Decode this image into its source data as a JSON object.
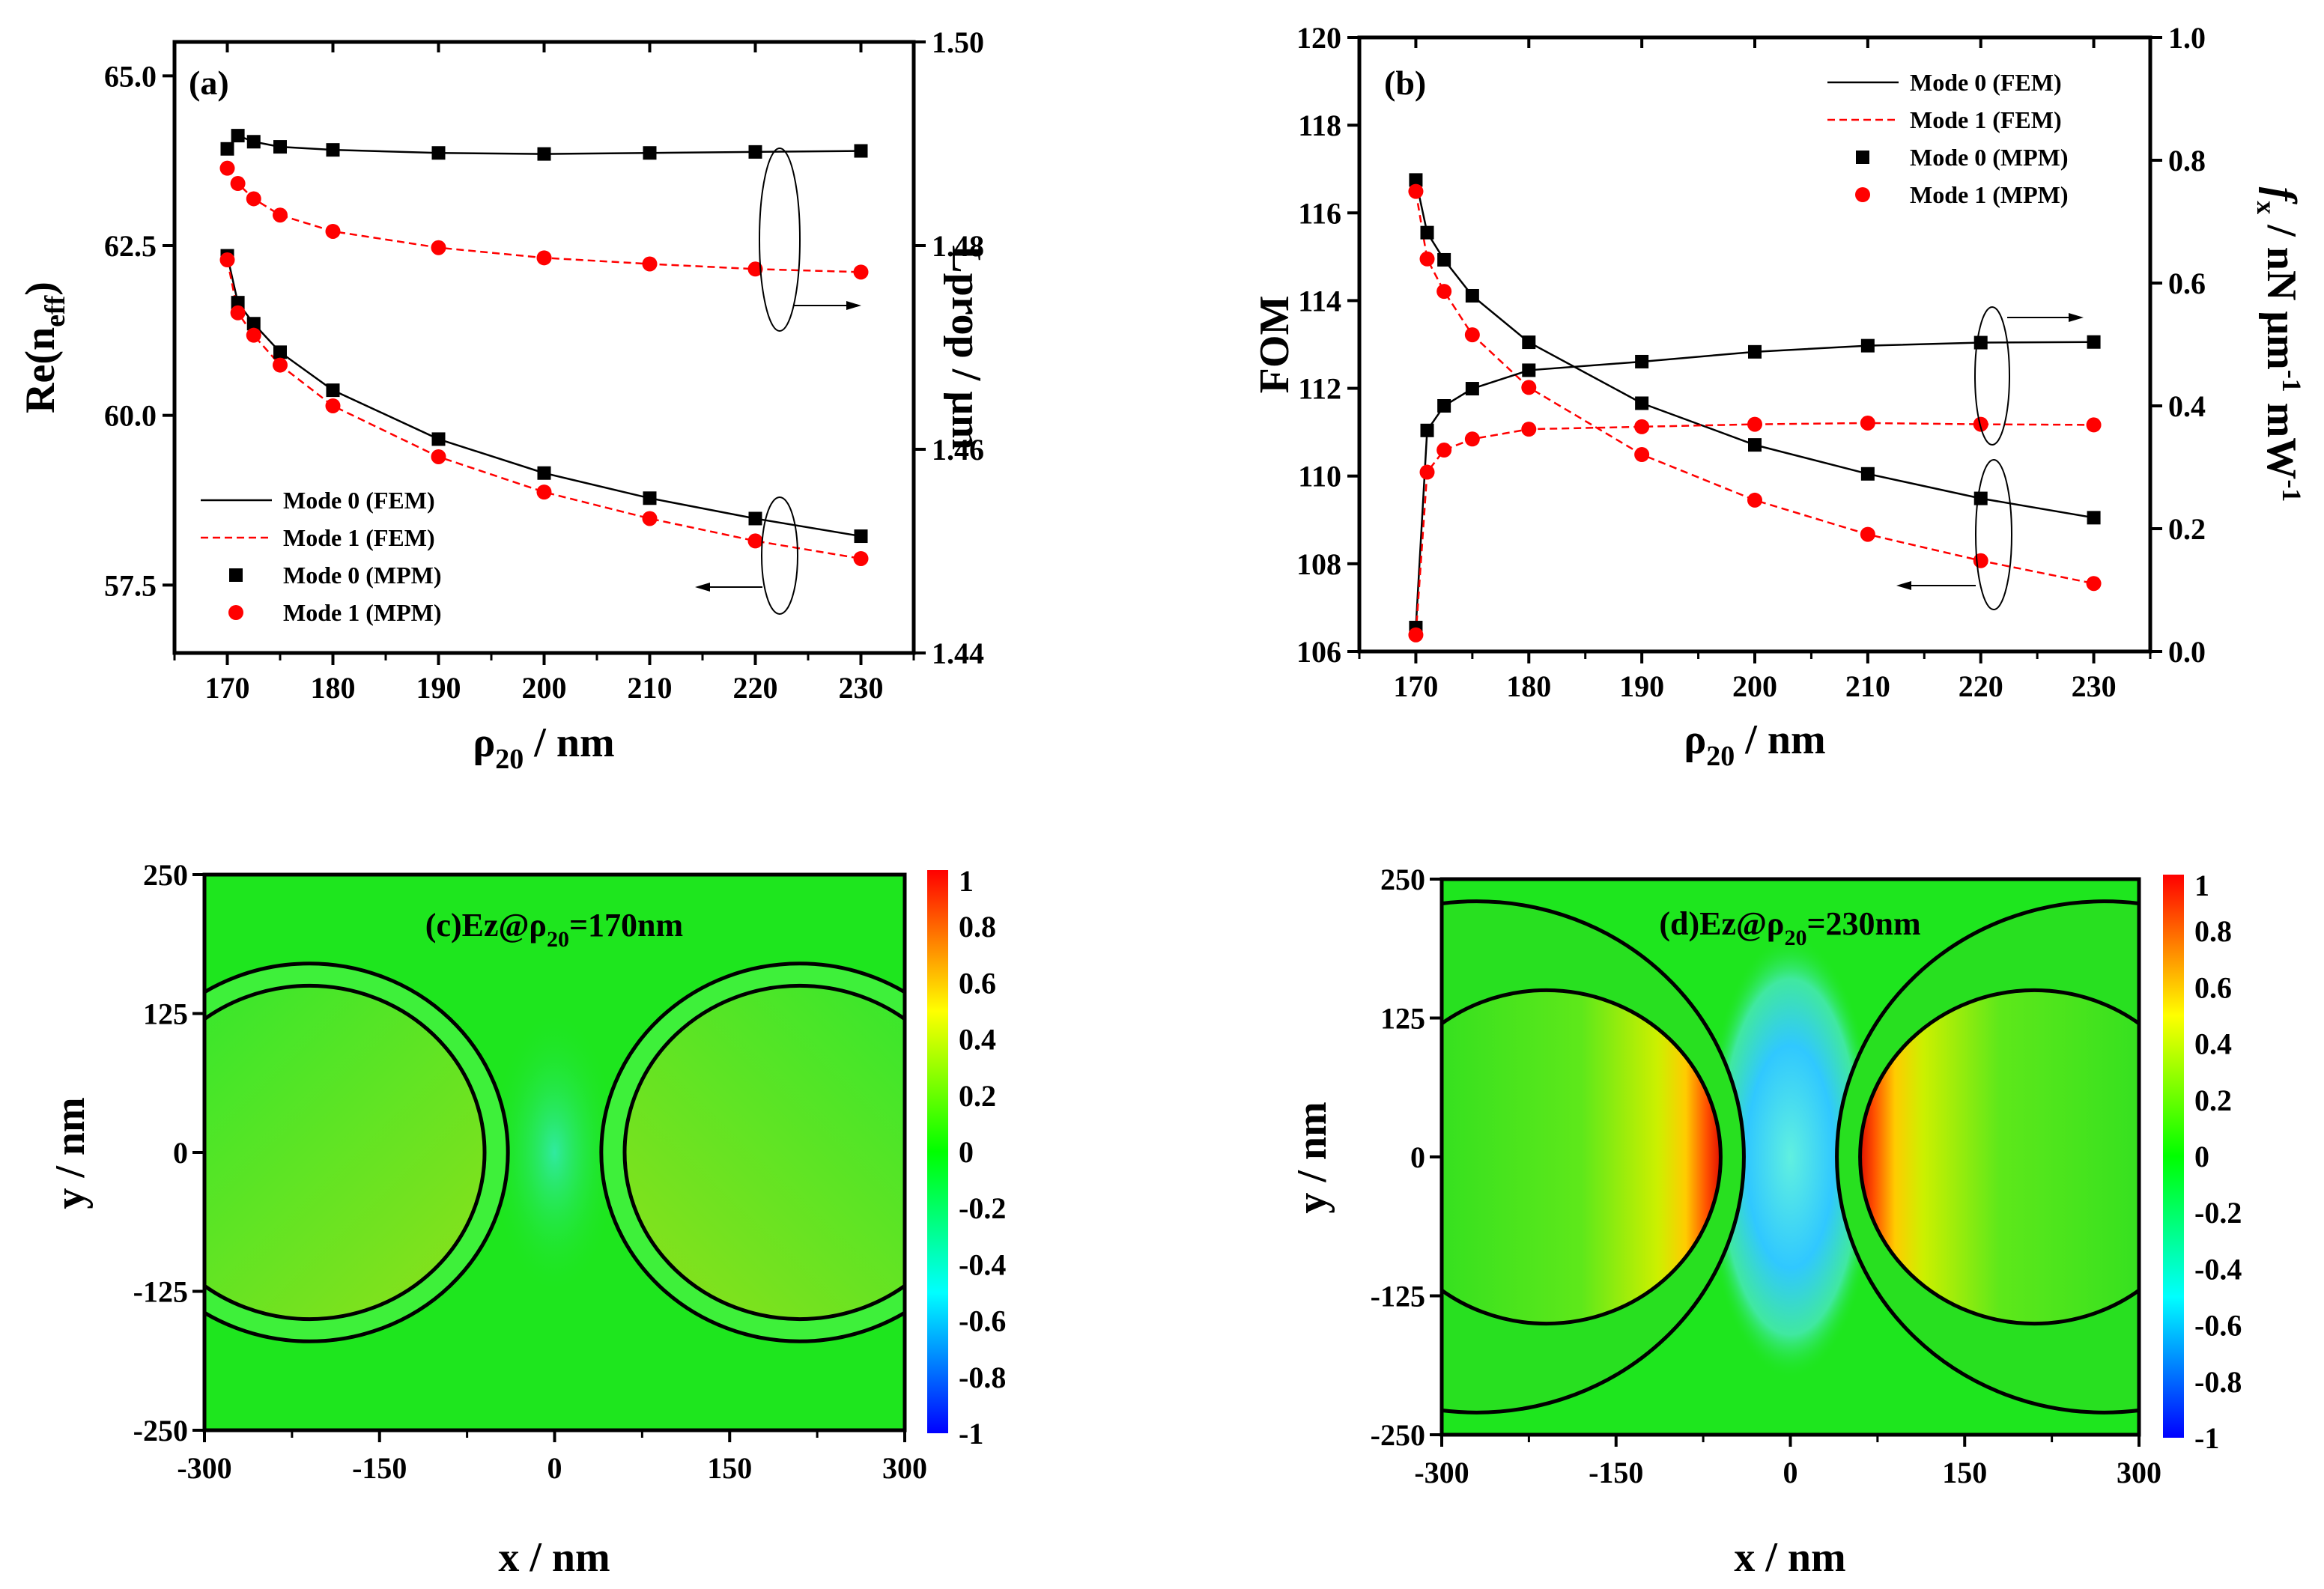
{
  "chart_data": [
    {
      "id": "a",
      "type": "line",
      "panel_label": "(a)",
      "xlabel": {
        "main": "ρ",
        "sub": "20",
        "rest": " / nm"
      },
      "ylabel_left": {
        "main": "Re(n",
        "sub": "eff",
        "rest": ")"
      },
      "ylabel_right": "Lprop / μm",
      "xlim": [
        165,
        235
      ],
      "ylim_left": [
        56.5,
        65.5
      ],
      "ylim_right": [
        1.44,
        1.5
      ],
      "xticks": [
        170,
        180,
        190,
        200,
        210,
        220,
        230
      ],
      "xtick_labels": [
        "170",
        "180",
        "190",
        "200",
        "210",
        "220",
        "230"
      ],
      "yticks_left": [
        57.5,
        60.0,
        62.5,
        65.0
      ],
      "ytick_labels_left": [
        "57.5",
        "60.0",
        "62.5",
        "65.0"
      ],
      "yticks_right": [
        1.44,
        1.46,
        1.48,
        1.5
      ],
      "ytick_labels_right": [
        "1.44",
        "1.46",
        "1.48",
        "1.50"
      ],
      "x": [
        170,
        171,
        172.5,
        175,
        180,
        190,
        200,
        210,
        220,
        230
      ],
      "series": [
        {
          "name": "Mode 0 (FEM)",
          "axis": "left",
          "style": "solid",
          "color": "#000000",
          "values": [
            62.35,
            61.66,
            61.35,
            60.93,
            60.37,
            59.65,
            59.15,
            58.78,
            58.48,
            58.22
          ]
        },
        {
          "name": "Mode 1 (FEM)",
          "axis": "left",
          "style": "dashed",
          "color": "#ff0000",
          "values": [
            62.29,
            61.51,
            61.18,
            60.74,
            60.14,
            59.39,
            58.87,
            58.48,
            58.15,
            57.89
          ]
        },
        {
          "name": "Mode 0 (MPM)",
          "axis": "left",
          "style": "square",
          "color": "#000000",
          "values": [
            62.35,
            61.66,
            61.35,
            60.93,
            60.37,
            59.65,
            59.15,
            58.78,
            58.48,
            58.22
          ]
        },
        {
          "name": "Mode 1 (MPM)",
          "axis": "left",
          "style": "circle",
          "color": "#ff0000",
          "values": [
            62.29,
            61.51,
            61.18,
            60.74,
            60.14,
            59.39,
            58.87,
            58.48,
            58.15,
            57.89
          ]
        },
        {
          "name": "Mode 0 Lprop (FEM)",
          "axis": "right",
          "style": "solid",
          "color": "#000000",
          "values": [
            1.4895,
            1.4908,
            1.4902,
            1.4897,
            1.4894,
            1.4891,
            1.489,
            1.4891,
            1.4892,
            1.4893
          ]
        },
        {
          "name": "Mode 1 Lprop (FEM)",
          "axis": "right",
          "style": "dashed",
          "color": "#ff0000",
          "values": [
            1.4876,
            1.4861,
            1.4846,
            1.483,
            1.4814,
            1.4798,
            1.4788,
            1.4782,
            1.4777,
            1.4774
          ]
        },
        {
          "name": "Mode 0 Lprop (MPM)",
          "axis": "right",
          "style": "square",
          "color": "#000000",
          "values": [
            1.4895,
            1.4908,
            1.4902,
            1.4897,
            1.4894,
            1.4891,
            1.489,
            1.4891,
            1.4892,
            1.4893
          ]
        },
        {
          "name": "Mode 1 Lprop (MPM)",
          "axis": "right",
          "style": "circle",
          "color": "#ff0000",
          "values": [
            1.4876,
            1.4861,
            1.4846,
            1.483,
            1.4814,
            1.4798,
            1.4788,
            1.4782,
            1.4777,
            1.4774
          ]
        }
      ],
      "legend": {
        "placement": "bottom-left",
        "entries": [
          "Mode 0 (FEM)",
          "Mode 1 (FEM)",
          "Mode 0 (MPM)",
          "Mode 1 (MPM)"
        ]
      }
    },
    {
      "id": "b",
      "type": "line",
      "panel_label": "(b)",
      "xlabel": {
        "main": "ρ",
        "sub": "20",
        "rest": " / nm"
      },
      "ylabel_left": "FOM",
      "ylabel_right": {
        "f": "f",
        "fsub": "x",
        "mid": " / nN μm",
        "sup1": "-1",
        "mid2": " mW",
        "sup2": "-1"
      },
      "xlim": [
        165,
        235
      ],
      "ylim_left": [
        106,
        120
      ],
      "ylim_right": [
        0.0,
        1.0
      ],
      "xticks": [
        170,
        180,
        190,
        200,
        210,
        220,
        230
      ],
      "xtick_labels": [
        "170",
        "180",
        "190",
        "200",
        "210",
        "220",
        "230"
      ],
      "yticks_left": [
        106,
        108,
        110,
        112,
        114,
        116,
        118,
        120
      ],
      "ytick_labels_left": [
        "106",
        "108",
        "110",
        "112",
        "114",
        "116",
        "118",
        "120"
      ],
      "yticks_right": [
        0.0,
        0.2,
        0.4,
        0.6,
        0.8,
        1.0
      ],
      "ytick_labels_right": [
        "0.0",
        "0.2",
        "0.4",
        "0.6",
        "0.8",
        "1.0"
      ],
      "x": [
        170,
        171,
        172.5,
        175,
        180,
        190,
        200,
        210,
        220,
        230
      ],
      "series": [
        {
          "name": "Mode 0 (FEM)",
          "axis": "left",
          "style": "solid",
          "color": "#000000",
          "values": [
            116.75,
            115.55,
            114.93,
            114.11,
            113.05,
            111.66,
            110.71,
            110.05,
            109.49,
            109.05
          ]
        },
        {
          "name": "Mode 1 (FEM)",
          "axis": "left",
          "style": "dashed",
          "color": "#ff0000",
          "values": [
            116.49,
            114.95,
            114.21,
            113.22,
            112.02,
            110.49,
            109.45,
            108.67,
            108.07,
            107.55
          ]
        },
        {
          "name": "Mode 0 (MPM)",
          "axis": "left",
          "style": "square",
          "color": "#000000",
          "values": [
            116.75,
            115.55,
            114.93,
            114.11,
            113.05,
            111.66,
            110.71,
            110.05,
            109.49,
            109.05
          ]
        },
        {
          "name": "Mode 1 (MPM)",
          "axis": "left",
          "style": "circle",
          "color": "#ff0000",
          "values": [
            116.49,
            114.95,
            114.21,
            113.22,
            112.02,
            110.49,
            109.45,
            108.67,
            108.07,
            107.55
          ]
        },
        {
          "name": "Mode 0 fx (FEM)",
          "axis": "right",
          "style": "solid",
          "color": "#000000",
          "values": [
            0.039,
            0.36,
            0.4,
            0.428,
            0.458,
            0.472,
            0.488,
            0.498,
            0.503,
            0.504
          ]
        },
        {
          "name": "Mode 1 fx (FEM)",
          "axis": "right",
          "style": "dashed",
          "color": "#ff0000",
          "values": [
            0.027,
            0.292,
            0.328,
            0.346,
            0.362,
            0.366,
            0.37,
            0.372,
            0.37,
            0.369
          ]
        },
        {
          "name": "Mode 0 fx (MPM)",
          "axis": "right",
          "style": "square",
          "color": "#000000",
          "values": [
            0.039,
            0.36,
            0.4,
            0.428,
            0.458,
            0.472,
            0.488,
            0.498,
            0.503,
            0.504
          ]
        },
        {
          "name": "Mode 1 fx (MPM)",
          "axis": "right",
          "style": "circle",
          "color": "#ff0000",
          "values": [
            0.027,
            0.292,
            0.328,
            0.346,
            0.362,
            0.366,
            0.37,
            0.372,
            0.37,
            0.369
          ]
        }
      ],
      "legend": {
        "placement": "top-right",
        "entries": [
          "Mode 0 (FEM)",
          "Mode 1 (FEM)",
          "Mode 0 (MPM)",
          "Mode 1 (MPM)"
        ]
      }
    },
    {
      "id": "c",
      "type": "heatmap",
      "title": {
        "main": "(c)Ez@ρ",
        "sub": "20",
        "rest": "=170nm"
      },
      "xlabel": "x / nm",
      "ylabel": "y / nm",
      "xlim": [
        -300,
        300
      ],
      "ylim": [
        -250,
        250
      ],
      "xtick_labels": [
        "-300",
        "-150",
        "0",
        "150",
        "300"
      ],
      "xticks": [
        -300,
        -150,
        0,
        150,
        300
      ],
      "ytick_labels": [
        "-250",
        "-125",
        "0",
        "125",
        "250"
      ],
      "yticks": [
        -250,
        -125,
        0,
        125,
        250
      ],
      "colorbar": {
        "range": [
          -1,
          1
        ],
        "ticks": [
          1,
          0.8,
          0.6,
          0.4,
          0.2,
          0,
          -0.2,
          -0.4,
          -0.6,
          -0.8,
          -1
        ],
        "tick_labels": [
          "1",
          "0.8",
          "0.6",
          "0.4",
          "0.2",
          "0",
          "-0.2",
          "-0.4",
          "-0.6",
          "-0.8",
          "-1"
        ]
      },
      "structures": [
        {
          "cx": -210,
          "cy": 0,
          "r_inner": 150,
          "r_outer": 170
        },
        {
          "cx": 210,
          "cy": 0,
          "r_inner": 150,
          "r_outer": 170
        }
      ],
      "field_peak": 0.15
    },
    {
      "id": "d",
      "type": "heatmap",
      "title": {
        "main": "(d)Ez@ρ",
        "sub": "20",
        "rest": "=230nm"
      },
      "xlabel": "x / nm",
      "ylabel": "y / nm",
      "xlim": [
        -300,
        300
      ],
      "ylim": [
        -250,
        250
      ],
      "xtick_labels": [
        "-300",
        "-150",
        "0",
        "150",
        "300"
      ],
      "xticks": [
        -300,
        -150,
        0,
        150,
        300
      ],
      "ytick_labels": [
        "-250",
        "-125",
        "0",
        "125",
        "250"
      ],
      "yticks": [
        -250,
        -125,
        0,
        125,
        250
      ],
      "colorbar": {
        "range": [
          -1,
          1
        ],
        "ticks": [
          1,
          0.8,
          0.6,
          0.4,
          0.2,
          0,
          -0.2,
          -0.4,
          -0.6,
          -0.8,
          -1
        ],
        "tick_labels": [
          "1",
          "0.8",
          "0.6",
          "0.4",
          "0.2",
          "0",
          "-0.2",
          "-0.4",
          "-0.6",
          "-0.8",
          "-1"
        ]
      },
      "structures": [
        {
          "cx": -210,
          "cy": 0,
          "r_inner": 150,
          "cx_outer": -270,
          "r_outer": 230
        },
        {
          "cx": 210,
          "cy": 0,
          "r_inner": 150,
          "cx_outer": 270,
          "r_outer": 230
        }
      ],
      "field_peak": 1.0
    }
  ]
}
